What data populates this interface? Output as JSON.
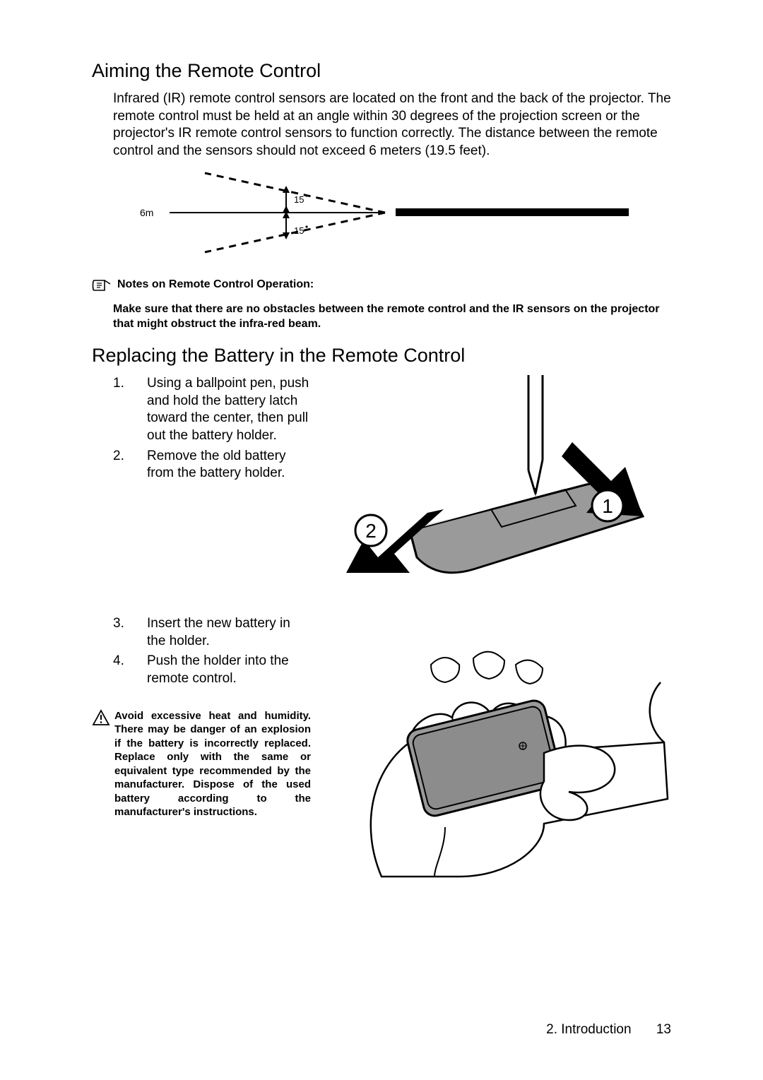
{
  "section1": {
    "title": "Aiming the Remote Control",
    "body": "Infrared (IR) remote control sensors are located on the front and the back of the projector. The remote control must be held at an angle within 30 degrees of the projection screen or the projector's IR remote control sensors to function correctly. The distance between the remote control and the sensors should not exceed 6 meters (19.5 feet).",
    "diagram": {
      "distance_label": "6m",
      "angle_upper": "15",
      "angle_lower": "15"
    },
    "note_title": "Notes on Remote Control Operation:",
    "note_body": "Make sure that there are no obstacles between the remote control and the IR sensors on the projector that might obstruct the infra-red beam."
  },
  "section2": {
    "title": "Replacing the Battery in the Remote Control",
    "steps12": [
      {
        "n": "1.",
        "t": "Using a ballpoint pen, push and hold the battery latch toward the center, then pull out the battery holder."
      },
      {
        "n": "2.",
        "t": "Remove the old battery from the battery holder."
      }
    ],
    "steps34": [
      {
        "n": "3.",
        "t": "Insert the new battery in the holder."
      },
      {
        "n": "4.",
        "t": "Push the holder into the remote control."
      }
    ],
    "diagram1": {
      "callout1": "1",
      "callout2": "2"
    },
    "warning": "Avoid excessive heat and humidity. There may be danger of an explosion if the battery is incorrectly replaced. Replace only with the same or equivalent type recommended by the manufacturer. Dispose of the used battery according to the manufacturer's instructions."
  },
  "footer": {
    "chapter": "2. Introduction",
    "page": "13"
  },
  "colors": {
    "black": "#000000",
    "gray_fill": "#9a9a9a",
    "light_gray": "#cfcfcf"
  }
}
